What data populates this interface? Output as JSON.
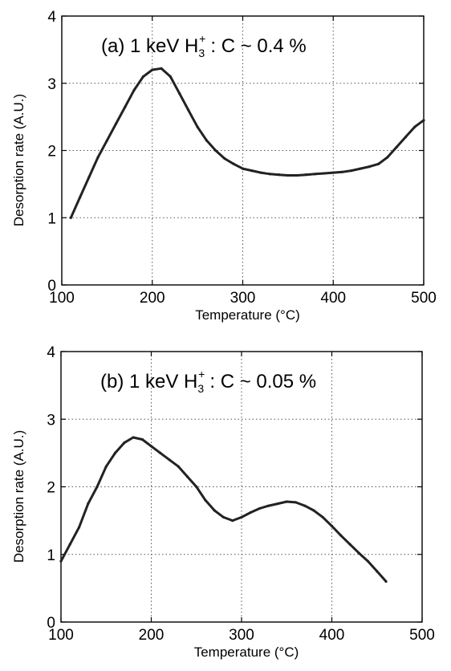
{
  "chart_data": [
    {
      "type": "line",
      "panel": "a",
      "title_main": "(a) 1 keV H",
      "title_sub": "3",
      "title_sup": "+",
      "title_rest": ": C ~ 0.4 %",
      "xlabel": "Temperature (°C)",
      "ylabel": "Desorption rate (A.U.)",
      "xlim": [
        100,
        500
      ],
      "ylim": [
        0,
        4
      ],
      "xticks": [
        "100",
        "200",
        "300",
        "400",
        "500"
      ],
      "yticks": [
        "0",
        "1",
        "2",
        "3",
        "4"
      ],
      "grid": true,
      "grid_style": "dotted",
      "series": [
        {
          "x": [
            110,
            120,
            130,
            140,
            150,
            160,
            170,
            180,
            190,
            200,
            210,
            220,
            230,
            240,
            250,
            260,
            270,
            280,
            290,
            300,
            310,
            320,
            330,
            340,
            350,
            360,
            370,
            380,
            390,
            400,
            410,
            420,
            430,
            440,
            450,
            460,
            470,
            480,
            490,
            500
          ],
          "y": [
            1.0,
            1.3,
            1.6,
            1.9,
            2.15,
            2.4,
            2.65,
            2.9,
            3.1,
            3.2,
            3.22,
            3.1,
            2.85,
            2.6,
            2.35,
            2.15,
            2.0,
            1.88,
            1.8,
            1.73,
            1.7,
            1.67,
            1.65,
            1.64,
            1.63,
            1.63,
            1.64,
            1.65,
            1.66,
            1.67,
            1.68,
            1.7,
            1.73,
            1.76,
            1.8,
            1.9,
            2.05,
            2.2,
            2.35,
            2.45
          ]
        }
      ]
    },
    {
      "type": "line",
      "panel": "b",
      "title_main": "(b) 1 keV H",
      "title_sub": "3",
      "title_sup": "+",
      "title_rest": ": C ~ 0.05 %",
      "xlabel": "Temperature (°C)",
      "ylabel": "Desorption rate (A.U.)",
      "xlim": [
        100,
        500
      ],
      "ylim": [
        0,
        4
      ],
      "xticks": [
        "100",
        "200",
        "300",
        "400",
        "500"
      ],
      "yticks": [
        "0",
        "1",
        "2",
        "3",
        "4"
      ],
      "grid": true,
      "grid_style": "dotted",
      "series": [
        {
          "x": [
            100,
            110,
            120,
            130,
            140,
            150,
            160,
            170,
            180,
            190,
            200,
            210,
            220,
            230,
            240,
            250,
            260,
            270,
            280,
            290,
            300,
            310,
            320,
            330,
            340,
            350,
            360,
            370,
            380,
            390,
            400,
            410,
            420,
            430,
            440,
            450,
            460
          ],
          "y": [
            0.9,
            1.15,
            1.4,
            1.75,
            2.0,
            2.3,
            2.5,
            2.65,
            2.73,
            2.7,
            2.6,
            2.5,
            2.4,
            2.3,
            2.15,
            2.0,
            1.8,
            1.65,
            1.55,
            1.5,
            1.55,
            1.62,
            1.68,
            1.72,
            1.75,
            1.78,
            1.77,
            1.72,
            1.65,
            1.55,
            1.42,
            1.28,
            1.15,
            1.02,
            0.9,
            0.75,
            0.6
          ]
        }
      ]
    }
  ]
}
